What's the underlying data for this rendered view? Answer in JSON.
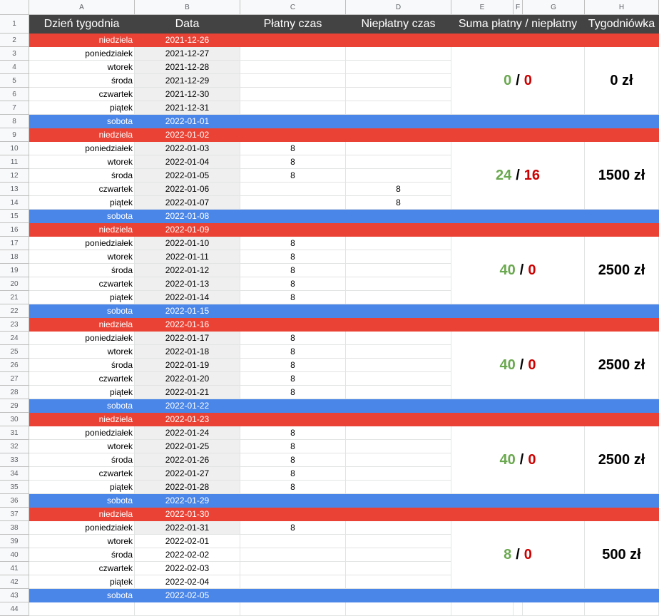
{
  "columns": [
    "A",
    "B",
    "C",
    "D",
    "E",
    "F",
    "G",
    "H"
  ],
  "headers": {
    "day": "Dzień tygodnia",
    "date": "Data",
    "paid": "Płatny czas",
    "unpaid": "Niepłatny czas",
    "sum": "Suma płatny / niepłatny",
    "weekly": "Tygodniówka"
  },
  "rows": [
    {
      "n": "2",
      "day": "niedziela",
      "date": "2021-12-26",
      "paid": "",
      "unpaid": "",
      "type": "sunday"
    },
    {
      "n": "3",
      "day": "poniedziałek",
      "date": "2021-12-27",
      "paid": "",
      "unpaid": "",
      "type": "weekday"
    },
    {
      "n": "4",
      "day": "wtorek",
      "date": "2021-12-28",
      "paid": "",
      "unpaid": "",
      "type": "weekday"
    },
    {
      "n": "5",
      "day": "środa",
      "date": "2021-12-29",
      "paid": "",
      "unpaid": "",
      "type": "weekday"
    },
    {
      "n": "6",
      "day": "czwartek",
      "date": "2021-12-30",
      "paid": "",
      "unpaid": "",
      "type": "weekday"
    },
    {
      "n": "7",
      "day": "piątek",
      "date": "2021-12-31",
      "paid": "",
      "unpaid": "",
      "type": "weekday"
    },
    {
      "n": "8",
      "day": "sobota",
      "date": "2022-01-01",
      "paid": "",
      "unpaid": "",
      "type": "saturday"
    },
    {
      "n": "9",
      "day": "niedziela",
      "date": "2022-01-02",
      "paid": "",
      "unpaid": "",
      "type": "sunday"
    },
    {
      "n": "10",
      "day": "poniedziałek",
      "date": "2022-01-03",
      "paid": "8",
      "unpaid": "",
      "type": "weekday"
    },
    {
      "n": "11",
      "day": "wtorek",
      "date": "2022-01-04",
      "paid": "8",
      "unpaid": "",
      "type": "weekday"
    },
    {
      "n": "12",
      "day": "środa",
      "date": "2022-01-05",
      "paid": "8",
      "unpaid": "",
      "type": "weekday"
    },
    {
      "n": "13",
      "day": "czwartek",
      "date": "2022-01-06",
      "paid": "",
      "unpaid": "8",
      "type": "weekday"
    },
    {
      "n": "14",
      "day": "piątek",
      "date": "2022-01-07",
      "paid": "",
      "unpaid": "8",
      "type": "weekday"
    },
    {
      "n": "15",
      "day": "sobota",
      "date": "2022-01-08",
      "paid": "",
      "unpaid": "",
      "type": "saturday"
    },
    {
      "n": "16",
      "day": "niedziela",
      "date": "2022-01-09",
      "paid": "",
      "unpaid": "",
      "type": "sunday"
    },
    {
      "n": "17",
      "day": "poniedziałek",
      "date": "2022-01-10",
      "paid": "8",
      "unpaid": "",
      "type": "weekday"
    },
    {
      "n": "18",
      "day": "wtorek",
      "date": "2022-01-11",
      "paid": "8",
      "unpaid": "",
      "type": "weekday"
    },
    {
      "n": "19",
      "day": "środa",
      "date": "2022-01-12",
      "paid": "8",
      "unpaid": "",
      "type": "weekday"
    },
    {
      "n": "20",
      "day": "czwartek",
      "date": "2022-01-13",
      "paid": "8",
      "unpaid": "",
      "type": "weekday"
    },
    {
      "n": "21",
      "day": "piątek",
      "date": "2022-01-14",
      "paid": "8",
      "unpaid": "",
      "type": "weekday"
    },
    {
      "n": "22",
      "day": "sobota",
      "date": "2022-01-15",
      "paid": "",
      "unpaid": "",
      "type": "saturday"
    },
    {
      "n": "23",
      "day": "niedziela",
      "date": "2022-01-16",
      "paid": "",
      "unpaid": "",
      "type": "sunday"
    },
    {
      "n": "24",
      "day": "poniedziałek",
      "date": "2022-01-17",
      "paid": "8",
      "unpaid": "",
      "type": "weekday"
    },
    {
      "n": "25",
      "day": "wtorek",
      "date": "2022-01-18",
      "paid": "8",
      "unpaid": "",
      "type": "weekday"
    },
    {
      "n": "26",
      "day": "środa",
      "date": "2022-01-19",
      "paid": "8",
      "unpaid": "",
      "type": "weekday"
    },
    {
      "n": "27",
      "day": "czwartek",
      "date": "2022-01-20",
      "paid": "8",
      "unpaid": "",
      "type": "weekday"
    },
    {
      "n": "28",
      "day": "piątek",
      "date": "2022-01-21",
      "paid": "8",
      "unpaid": "",
      "type": "weekday"
    },
    {
      "n": "29",
      "day": "sobota",
      "date": "2022-01-22",
      "paid": "",
      "unpaid": "",
      "type": "saturday"
    },
    {
      "n": "30",
      "day": "niedziela",
      "date": "2022-01-23",
      "paid": "",
      "unpaid": "",
      "type": "sunday"
    },
    {
      "n": "31",
      "day": "poniedziałek",
      "date": "2022-01-24",
      "paid": "8",
      "unpaid": "",
      "type": "weekday"
    },
    {
      "n": "32",
      "day": "wtorek",
      "date": "2022-01-25",
      "paid": "8",
      "unpaid": "",
      "type": "weekday"
    },
    {
      "n": "33",
      "day": "środa",
      "date": "2022-01-26",
      "paid": "8",
      "unpaid": "",
      "type": "weekday"
    },
    {
      "n": "34",
      "day": "czwartek",
      "date": "2022-01-27",
      "paid": "8",
      "unpaid": "",
      "type": "weekday"
    },
    {
      "n": "35",
      "day": "piątek",
      "date": "2022-01-28",
      "paid": "8",
      "unpaid": "",
      "type": "weekday"
    },
    {
      "n": "36",
      "day": "sobota",
      "date": "2022-01-29",
      "paid": "",
      "unpaid": "",
      "type": "saturday"
    },
    {
      "n": "37",
      "day": "niedziela",
      "date": "2022-01-30",
      "paid": "",
      "unpaid": "",
      "type": "sunday"
    },
    {
      "n": "38",
      "day": "poniedziałek",
      "date": "2022-01-31",
      "paid": "8",
      "unpaid": "",
      "type": "weekday"
    },
    {
      "n": "39",
      "day": "wtorek",
      "date": "2022-02-01",
      "paid": "",
      "unpaid": "",
      "type": "weekday-plain"
    },
    {
      "n": "40",
      "day": "środa",
      "date": "2022-02-02",
      "paid": "",
      "unpaid": "",
      "type": "weekday-plain"
    },
    {
      "n": "41",
      "day": "czwartek",
      "date": "2022-02-03",
      "paid": "",
      "unpaid": "",
      "type": "weekday-plain"
    },
    {
      "n": "42",
      "day": "piątek",
      "date": "2022-02-04",
      "paid": "",
      "unpaid": "",
      "type": "weekday-plain"
    },
    {
      "n": "43",
      "day": "sobota",
      "date": "2022-02-05",
      "paid": "",
      "unpaid": "",
      "type": "saturday"
    },
    {
      "n": "44",
      "day": "",
      "date": "",
      "paid": "",
      "unpaid": "",
      "type": "empty"
    }
  ],
  "weeks": [
    {
      "paid": "0",
      "unpaid": "0",
      "wage": "0 zł"
    },
    {
      "paid": "24",
      "unpaid": "16",
      "wage": "1500 zł"
    },
    {
      "paid": "40",
      "unpaid": "0",
      "wage": "2500 zł"
    },
    {
      "paid": "40",
      "unpaid": "0",
      "wage": "2500 zł"
    },
    {
      "paid": "40",
      "unpaid": "0",
      "wage": "2500 zł"
    },
    {
      "paid": "8",
      "unpaid": "0",
      "wage": "500 zł"
    }
  ],
  "row_number_header": "1",
  "slash": "/",
  "colors": {
    "sunday": "#ea4335",
    "saturday": "#4a86e8",
    "header": "#434343",
    "paid": "#6aa84f",
    "unpaid": "#cc0000"
  }
}
